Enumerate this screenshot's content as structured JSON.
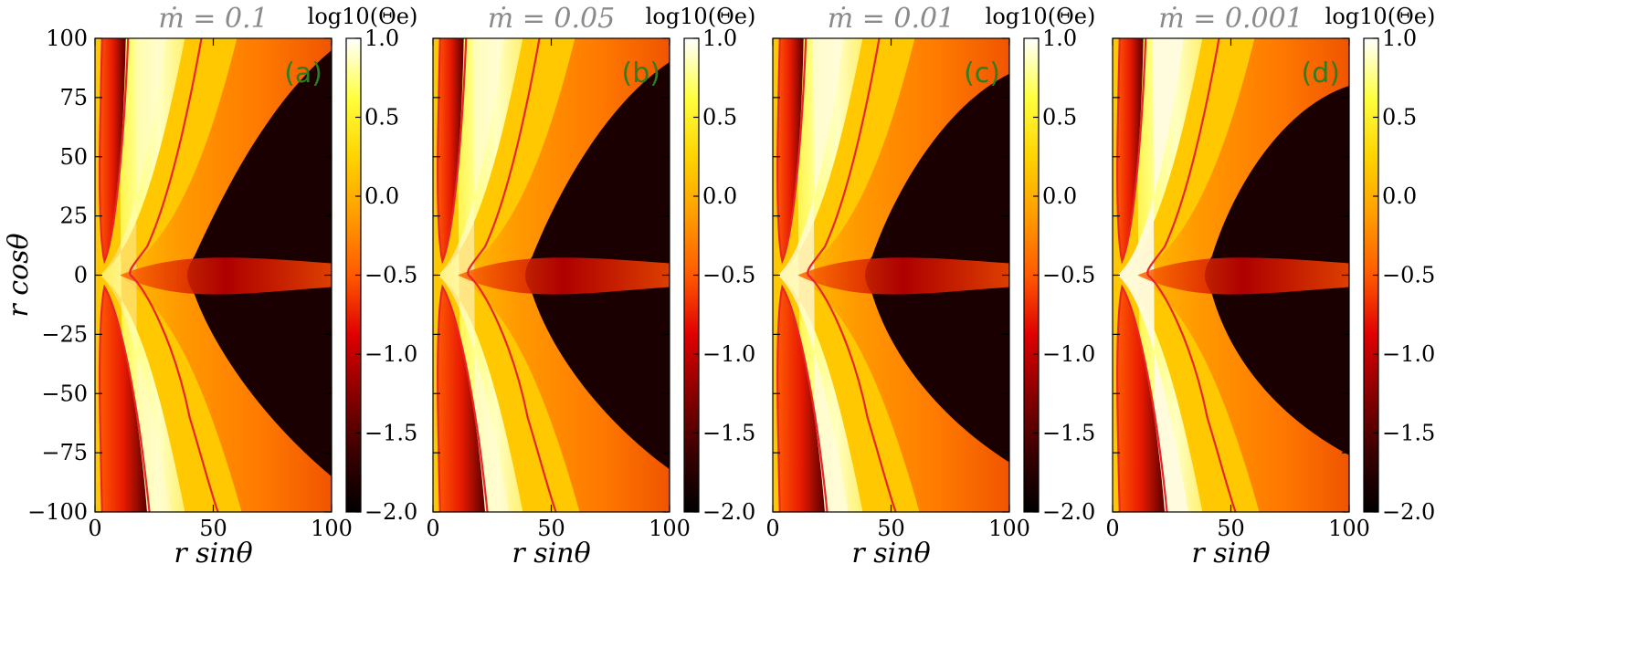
{
  "colors": {
    "title": "#8a8a8a",
    "panel_label": "#2e7d20",
    "contour": "#e8262a",
    "colormap": [
      "#000000",
      "#3a0000",
      "#8a0000",
      "#e00000",
      "#ff5a00",
      "#ff9c00",
      "#ffd400",
      "#ffff40",
      "#ffffff"
    ]
  },
  "chart_data": [
    {
      "type": "heatmap",
      "title": "ṁ = 0.1",
      "panel_label": "(a)",
      "xlabel": "r sinθ",
      "ylabel": "r cosθ",
      "xlim": [
        0,
        100
      ],
      "ylim": [
        -100,
        100
      ],
      "x_ticks": [
        "0",
        "50",
        "100"
      ],
      "y_ticks": [
        "100",
        "75",
        "50",
        "25",
        "0",
        "−25",
        "−50",
        "−75",
        "−100"
      ],
      "colorbar": {
        "label": "log10(Θe)",
        "range": [
          -2.0,
          1.0
        ],
        "ticks": [
          "1.0",
          "0.5",
          "0.0",
          "−0.5",
          "−1.0",
          "−1.5",
          "−2.0"
        ]
      }
    },
    {
      "type": "heatmap",
      "title": "ṁ = 0.05",
      "panel_label": "(b)",
      "xlabel": "r sinθ",
      "xlim": [
        0,
        100
      ],
      "ylim": [
        -100,
        100
      ],
      "x_ticks": [
        "0",
        "50",
        "100"
      ],
      "colorbar": {
        "label": "log10(Θe)",
        "range": [
          -2.0,
          1.0
        ],
        "ticks": [
          "1.0",
          "0.5",
          "0.0",
          "−0.5",
          "−1.0",
          "−1.5",
          "−2.0"
        ]
      }
    },
    {
      "type": "heatmap",
      "title": "ṁ = 0.01",
      "panel_label": "(c)",
      "xlabel": "r sinθ",
      "xlim": [
        0,
        100
      ],
      "ylim": [
        -100,
        100
      ],
      "x_ticks": [
        "0",
        "50",
        "100"
      ],
      "colorbar": {
        "label": "log10(Θe)",
        "range": [
          -2.0,
          1.0
        ],
        "ticks": [
          "1.0",
          "0.5",
          "0.0",
          "−0.5",
          "−1.0",
          "−1.5",
          "−2.0"
        ]
      }
    },
    {
      "type": "heatmap",
      "title": "ṁ = 0.001",
      "panel_label": "(d)",
      "xlabel": "r sinθ",
      "xlim": [
        0,
        100
      ],
      "ylim": [
        -100,
        100
      ],
      "x_ticks": [
        "0",
        "50",
        "100"
      ],
      "colorbar": {
        "label": "log10(Θe)",
        "range": [
          -2.0,
          1.0
        ],
        "ticks": [
          "1.0",
          "0.5",
          "0.0",
          "−0.5",
          "−1.0",
          "−1.5",
          "−2.0"
        ]
      }
    }
  ]
}
